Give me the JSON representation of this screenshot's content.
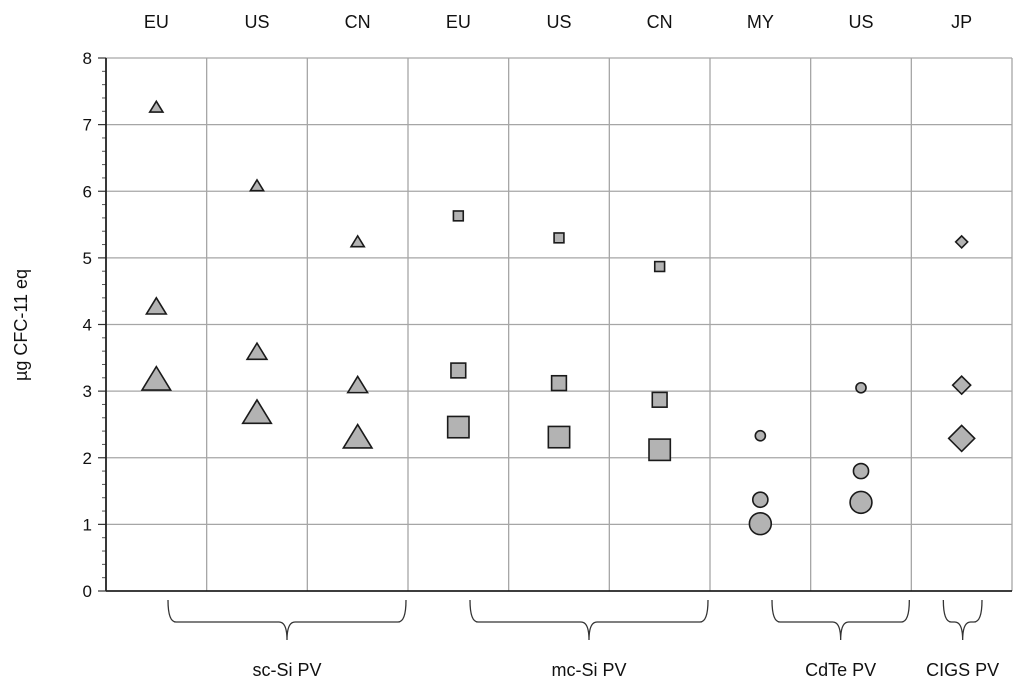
{
  "chart_data": {
    "type": "scatter",
    "title": "",
    "xlabel": "",
    "ylabel": "µg CFC-11 eq",
    "ylim": [
      0,
      8
    ],
    "yticks": [
      0,
      1,
      2,
      3,
      4,
      5,
      6,
      7,
      8
    ],
    "grid": true,
    "columns": [
      "EU",
      "US",
      "CN",
      "EU",
      "US",
      "CN",
      "MY",
      "US",
      "JP"
    ],
    "groups": [
      {
        "label": "sc-Si PV",
        "columns": [
          1,
          3
        ]
      },
      {
        "label": "mc-Si PV",
        "columns": [
          4,
          6
        ]
      },
      {
        "label": "CdTe PV",
        "columns": [
          7,
          8
        ]
      },
      {
        "label": "CIGS PV",
        "columns": [
          9,
          9
        ]
      }
    ],
    "marker_fill": "#b3b3b3",
    "marker_stroke": "#1a1a1a",
    "points": [
      {
        "column": 1,
        "y": 7.25,
        "marker": "triangle",
        "size": "small"
      },
      {
        "column": 1,
        "y": 4.25,
        "marker": "triangle",
        "size": "medium"
      },
      {
        "column": 1,
        "y": 3.15,
        "marker": "triangle",
        "size": "large"
      },
      {
        "column": 2,
        "y": 6.07,
        "marker": "triangle",
        "size": "small"
      },
      {
        "column": 2,
        "y": 3.57,
        "marker": "triangle",
        "size": "medium"
      },
      {
        "column": 2,
        "y": 2.65,
        "marker": "triangle",
        "size": "large"
      },
      {
        "column": 3,
        "y": 5.23,
        "marker": "triangle",
        "size": "small"
      },
      {
        "column": 3,
        "y": 3.07,
        "marker": "triangle",
        "size": "medium"
      },
      {
        "column": 3,
        "y": 2.28,
        "marker": "triangle",
        "size": "large"
      },
      {
        "column": 4,
        "y": 5.63,
        "marker": "square",
        "size": "small"
      },
      {
        "column": 4,
        "y": 3.31,
        "marker": "square",
        "size": "medium"
      },
      {
        "column": 4,
        "y": 2.46,
        "marker": "square",
        "size": "large"
      },
      {
        "column": 5,
        "y": 5.3,
        "marker": "square",
        "size": "small"
      },
      {
        "column": 5,
        "y": 3.12,
        "marker": "square",
        "size": "medium"
      },
      {
        "column": 5,
        "y": 2.31,
        "marker": "square",
        "size": "large"
      },
      {
        "column": 6,
        "y": 4.87,
        "marker": "square",
        "size": "small"
      },
      {
        "column": 6,
        "y": 2.87,
        "marker": "square",
        "size": "medium"
      },
      {
        "column": 6,
        "y": 2.12,
        "marker": "square",
        "size": "large"
      },
      {
        "column": 7,
        "y": 2.33,
        "marker": "circle",
        "size": "small"
      },
      {
        "column": 7,
        "y": 1.37,
        "marker": "circle",
        "size": "medium"
      },
      {
        "column": 7,
        "y": 1.01,
        "marker": "circle",
        "size": "large"
      },
      {
        "column": 8,
        "y": 3.05,
        "marker": "circle",
        "size": "small"
      },
      {
        "column": 8,
        "y": 1.8,
        "marker": "circle",
        "size": "medium"
      },
      {
        "column": 8,
        "y": 1.33,
        "marker": "circle",
        "size": "large"
      },
      {
        "column": 9,
        "y": 5.24,
        "marker": "diamond",
        "size": "small"
      },
      {
        "column": 9,
        "y": 3.09,
        "marker": "diamond",
        "size": "medium"
      },
      {
        "column": 9,
        "y": 2.29,
        "marker": "diamond",
        "size": "large"
      }
    ]
  }
}
